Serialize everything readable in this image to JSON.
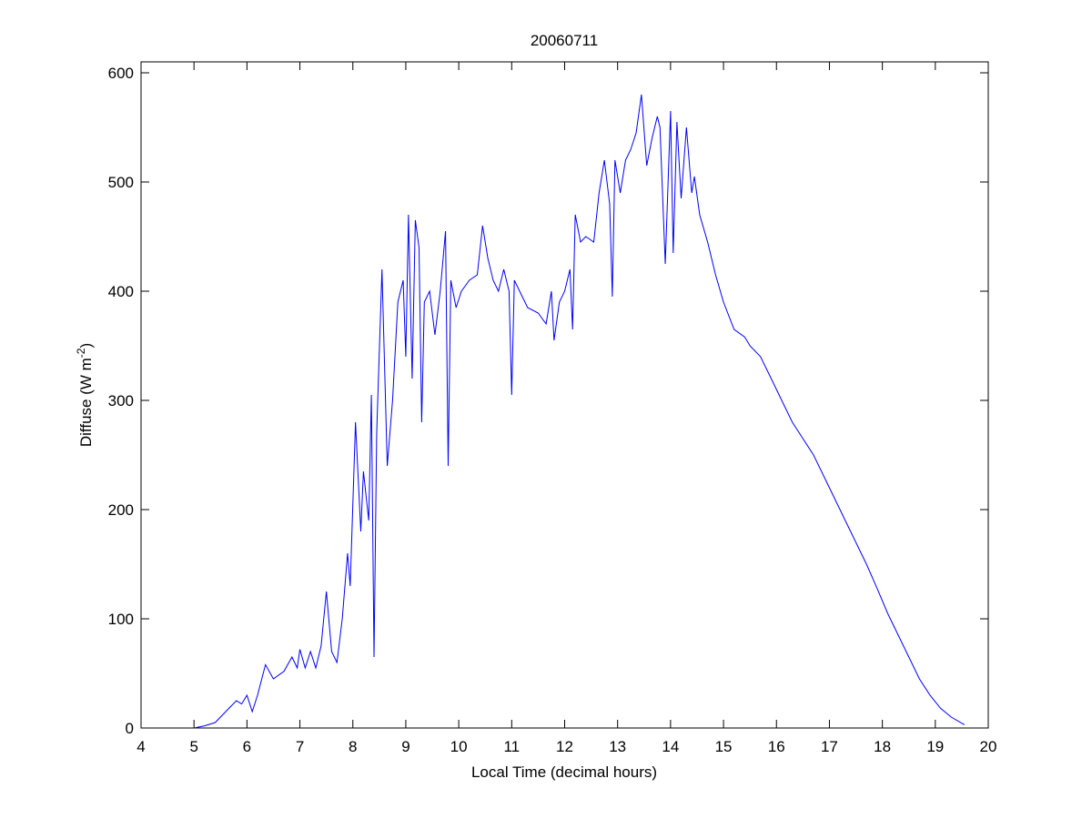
{
  "chart_data": {
    "type": "line",
    "title": "20060711",
    "x_label": "Local Time (decimal hours)",
    "y_label": {
      "text": "Diffuse (W m",
      "superscript": "-2",
      "suffix": ")"
    },
    "xlim": [
      4,
      20
    ],
    "ylim": [
      0,
      610
    ],
    "xticks": [
      4,
      5,
      6,
      7,
      8,
      9,
      10,
      11,
      12,
      13,
      14,
      15,
      16,
      17,
      18,
      19,
      20
    ],
    "yticks": [
      0,
      100,
      200,
      300,
      400,
      500,
      600
    ],
    "grid": false,
    "series": [
      {
        "name": "Diffuse",
        "color": "#0000ff",
        "x": [
          5.0,
          5.2,
          5.4,
          5.6,
          5.8,
          5.9,
          6.0,
          6.1,
          6.2,
          6.35,
          6.5,
          6.7,
          6.85,
          6.95,
          7.0,
          7.1,
          7.2,
          7.3,
          7.4,
          7.5,
          7.6,
          7.7,
          7.8,
          7.9,
          7.95,
          8.05,
          8.15,
          8.2,
          8.3,
          8.35,
          8.4,
          8.45,
          8.55,
          8.65,
          8.75,
          8.85,
          8.95,
          9.0,
          9.05,
          9.12,
          9.18,
          9.25,
          9.3,
          9.35,
          9.45,
          9.55,
          9.65,
          9.75,
          9.8,
          9.85,
          9.95,
          10.05,
          10.2,
          10.35,
          10.45,
          10.55,
          10.65,
          10.75,
          10.85,
          10.95,
          11.0,
          11.05,
          11.15,
          11.3,
          11.5,
          11.65,
          11.75,
          11.8,
          11.9,
          12.0,
          12.1,
          12.15,
          12.2,
          12.3,
          12.4,
          12.55,
          12.65,
          12.75,
          12.85,
          12.9,
          12.95,
          13.05,
          13.15,
          13.25,
          13.35,
          13.45,
          13.55,
          13.65,
          13.75,
          13.8,
          13.9,
          14.0,
          14.05,
          14.12,
          14.2,
          14.3,
          14.4,
          14.45,
          14.55,
          14.7,
          14.85,
          15.0,
          15.2,
          15.4,
          15.5,
          15.7,
          15.9,
          16.1,
          16.3,
          16.5,
          16.7,
          16.9,
          17.1,
          17.3,
          17.5,
          17.7,
          17.9,
          18.1,
          18.3,
          18.5,
          18.7,
          18.9,
          19.1,
          19.3,
          19.55
        ],
        "values": [
          0,
          2,
          5,
          15,
          25,
          22,
          30,
          15,
          30,
          58,
          45,
          52,
          65,
          55,
          72,
          55,
          70,
          55,
          75,
          125,
          70,
          60,
          100,
          160,
          130,
          280,
          180,
          235,
          190,
          305,
          65,
          270,
          420,
          240,
          300,
          390,
          410,
          340,
          470,
          320,
          465,
          440,
          280,
          390,
          400,
          360,
          400,
          455,
          240,
          410,
          385,
          400,
          410,
          415,
          460,
          430,
          410,
          400,
          420,
          400,
          305,
          410,
          400,
          385,
          380,
          370,
          400,
          355,
          390,
          400,
          420,
          365,
          470,
          445,
          450,
          445,
          490,
          520,
          480,
          395,
          520,
          490,
          520,
          530,
          545,
          580,
          515,
          540,
          560,
          550,
          425,
          565,
          435,
          555,
          485,
          550,
          490,
          505,
          470,
          445,
          415,
          390,
          365,
          358,
          350,
          340,
          320,
          300,
          280,
          265,
          250,
          230,
          210,
          190,
          170,
          150,
          128,
          105,
          85,
          65,
          45,
          30,
          18,
          10,
          3
        ]
      }
    ]
  }
}
